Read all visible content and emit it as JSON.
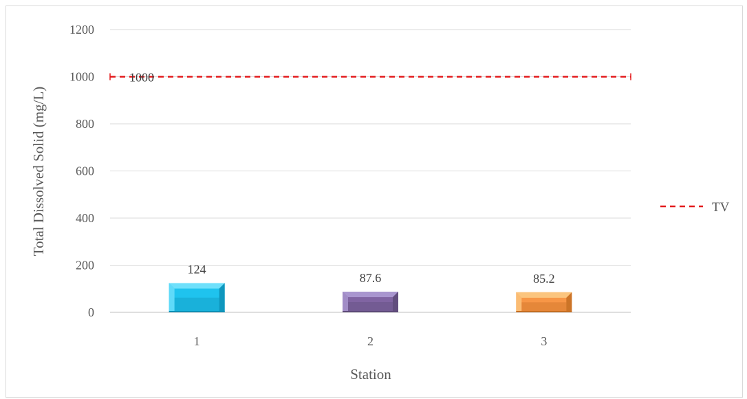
{
  "chart_data": {
    "type": "bar",
    "xlabel": "Station",
    "ylabel": "Total Dissolved Solid (mg/L)",
    "categories": [
      "1",
      "2",
      "3"
    ],
    "values": [
      124,
      87.6,
      85.2
    ],
    "value_labels": [
      "124",
      "87.6",
      "85.2"
    ],
    "bar_colors": [
      {
        "top": "#6fe0fb",
        "face": "#1fc3ee",
        "shade": "#0d8fb5"
      },
      {
        "top": "#a996cf",
        "face": "#8064a2",
        "shade": "#5d4a78"
      },
      {
        "top": "#fbc57e",
        "face": "#f79646",
        "shade": "#c46e22"
      }
    ],
    "ylim": [
      0,
      1200
    ],
    "yticks": [
      0,
      200,
      400,
      600,
      800,
      1000,
      1200
    ],
    "grid": true,
    "reference_line": {
      "name": "TV",
      "value": 1000,
      "label": "1000",
      "color": "#e31a1c",
      "style": "dashed"
    },
    "legend": {
      "position": "right",
      "entries": [
        "TV"
      ]
    }
  }
}
